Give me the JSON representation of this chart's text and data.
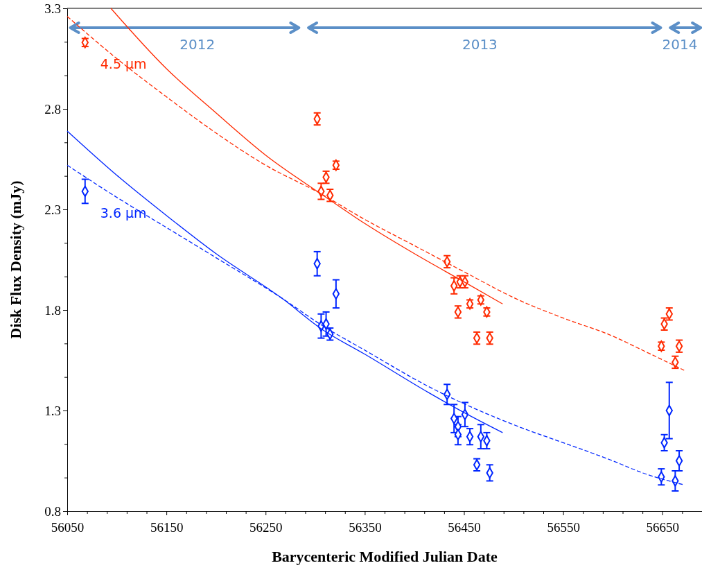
{
  "chart_data": {
    "type": "scatter",
    "xlabel": "Barycenteric Modified Julian Date",
    "ylabel": "Disk Flux Density (mJy)",
    "xlim": [
      56050,
      56690
    ],
    "xticks": [
      56050,
      56150,
      56250,
      56350,
      56450,
      56550,
      56650
    ],
    "ylim": [
      0.8,
      3.3
    ],
    "yticks": [
      0.8,
      1.3,
      1.8,
      2.3,
      2.8,
      3.3
    ],
    "grid": false,
    "legend": false,
    "marker": "diamond",
    "annotations": [
      "2012",
      "2013",
      "2014"
    ],
    "series": [
      {
        "name": "4.5 µm",
        "color": "#ff2a00",
        "x": [
          56068,
          56302,
          56306,
          56311,
          56315,
          56321,
          56433,
          56440,
          56446,
          56444,
          56451,
          56456,
          56463,
          56467,
          56473,
          56476,
          56649,
          56652,
          56657,
          56663,
          56667
        ],
        "values": [
          3.13,
          2.75,
          2.39,
          2.46,
          2.37,
          2.52,
          2.04,
          1.92,
          1.94,
          1.79,
          1.94,
          1.83,
          1.66,
          1.85,
          1.79,
          1.66,
          1.62,
          1.73,
          1.78,
          1.54,
          1.62
        ],
        "errors": [
          0.02,
          0.03,
          0.04,
          0.03,
          0.03,
          0.02,
          0.03,
          0.04,
          0.03,
          0.03,
          0.03,
          0.02,
          0.03,
          0.02,
          0.02,
          0.03,
          0.02,
          0.03,
          0.03,
          0.03,
          0.03
        ]
      },
      {
        "name": "3.6 µm",
        "color": "#0026ff",
        "x": [
          56068,
          56302,
          56306,
          56311,
          56315,
          56321,
          56433,
          56440,
          56444,
          56444,
          56451,
          56456,
          56463,
          56467,
          56473,
          56476,
          56649,
          56652,
          56657,
          56663,
          56667
        ],
        "values": [
          2.39,
          2.03,
          1.72,
          1.73,
          1.68,
          1.88,
          1.38,
          1.26,
          1.22,
          1.18,
          1.28,
          1.17,
          1.03,
          1.17,
          1.15,
          0.99,
          0.97,
          1.14,
          1.3,
          0.95,
          1.05
        ],
        "errors": [
          0.06,
          0.06,
          0.06,
          0.06,
          0.03,
          0.07,
          0.05,
          0.07,
          0.05,
          0.05,
          0.06,
          0.04,
          0.03,
          0.06,
          0.04,
          0.04,
          0.04,
          0.04,
          0.14,
          0.05,
          0.05
        ]
      },
      {
        "type": "line",
        "color": "#ff2a00",
        "line_style": "solid",
        "marker": "none",
        "x": [
          56094,
          56150,
          56200,
          56250,
          56305,
          56350,
          56400,
          56450,
          56489
        ],
        "values": [
          3.3,
          3.0,
          2.78,
          2.57,
          2.38,
          2.23,
          2.08,
          1.94,
          1.83
        ]
      },
      {
        "type": "line",
        "color": "#ff2a00",
        "line_style": "dashed",
        "marker": "none",
        "x": [
          56050,
          56100,
          56150,
          56200,
          56250,
          56305,
          56350,
          56400,
          56450,
          56505,
          56550,
          56600,
          56630,
          56672
        ],
        "values": [
          3.26,
          3.05,
          2.86,
          2.68,
          2.52,
          2.38,
          2.25,
          2.12,
          1.99,
          1.85,
          1.76,
          1.67,
          1.6,
          1.5
        ]
      },
      {
        "type": "line",
        "color": "#0026ff",
        "line_style": "solid",
        "marker": "none",
        "x": [
          56050,
          56100,
          56150,
          56200,
          56266,
          56308,
          56350,
          56414,
          56450,
          56489
        ],
        "values": [
          2.69,
          2.47,
          2.27,
          2.08,
          1.86,
          1.7,
          1.58,
          1.39,
          1.29,
          1.19
        ]
      },
      {
        "type": "line",
        "color": "#0026ff",
        "line_style": "dashed",
        "marker": "none",
        "x": [
          56050,
          56100,
          56150,
          56200,
          56266,
          56308,
          56350,
          56414,
          56505,
          56550,
          56600,
          56630,
          56672
        ],
        "values": [
          2.52,
          2.36,
          2.21,
          2.06,
          1.86,
          1.72,
          1.6,
          1.42,
          1.22,
          1.14,
          1.05,
          0.99,
          0.93
        ]
      }
    ]
  }
}
